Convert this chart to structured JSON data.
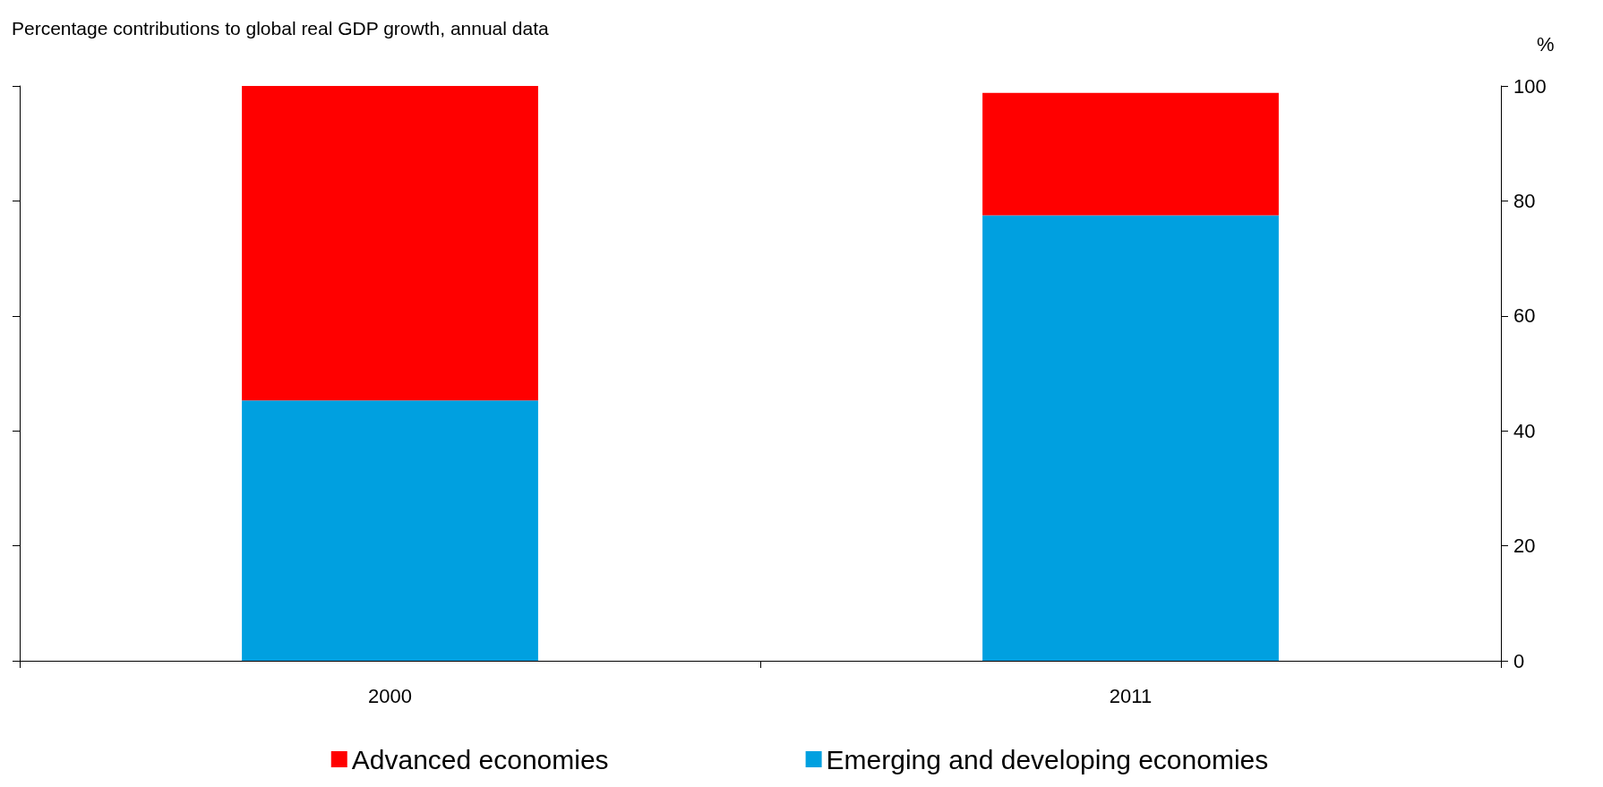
{
  "chart_data": {
    "type": "bar",
    "title": "Percentage contributions to global real GDP growth, annual data",
    "ylabel": "%",
    "categories": [
      "2000",
      "2011"
    ],
    "series": [
      {
        "name": "Emerging and developing economies",
        "color": "#00a0e0",
        "values": [
          45.3,
          77.5
        ]
      },
      {
        "name": "Advanced economies",
        "color": "#ff0000",
        "values": [
          54.7,
          21.3
        ]
      }
    ],
    "stacked": true,
    "ylim": [
      0,
      100
    ],
    "yticks": [
      0,
      20,
      40,
      60,
      80,
      100
    ],
    "grid": false,
    "legend": "bottom"
  }
}
